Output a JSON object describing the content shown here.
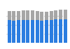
{
  "chart_data": {
    "type": "bar",
    "stacked": true,
    "grid": true,
    "tick_labels": false,
    "categories": [
      null,
      null,
      null,
      null,
      null,
      null,
      null,
      null,
      null,
      null,
      null,
      null,
      null
    ],
    "series": [
      {
        "color": "#2b7de0",
        "values": [
          64,
          63,
          64,
          64,
          65,
          65,
          64,
          63,
          64,
          65,
          66,
          67,
          67
        ]
      },
      {
        "color": "#a6a6a6",
        "values": [
          26,
          27,
          27,
          28,
          28,
          27,
          27,
          26,
          25,
          25,
          26,
          27,
          27
        ]
      }
    ],
    "ylim": [
      0,
      100
    ],
    "yticks": [
      0,
      25,
      50,
      75,
      100
    ]
  }
}
